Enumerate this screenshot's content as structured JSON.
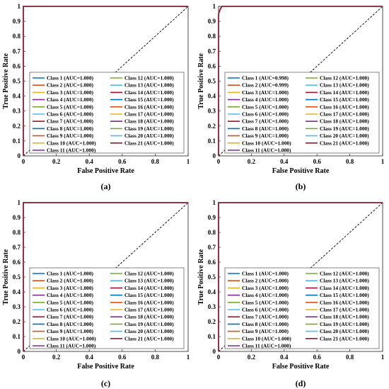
{
  "figure": {
    "panel_labels": [
      "(a)",
      "(b)",
      "(c)",
      "(d)"
    ]
  },
  "class_colors": [
    "#0072BD",
    "#D95319",
    "#EDB120",
    "#7E2F8E",
    "#77AC30",
    "#4DBEEE",
    "#A2142F",
    "#0072BD",
    "#D95319",
    "#EDB120",
    "#7E2F8E",
    "#77AC30",
    "#4DBEEE",
    "#A2142F",
    "#0072BD",
    "#D95319",
    "#EDB120",
    "#7E2F8E",
    "#77AC30",
    "#4DBEEE",
    "#A2142F"
  ],
  "chart_data": [
    {
      "type": "line",
      "panel": "(a)",
      "xlabel": "False Positive Rate",
      "ylabel": "True Positive Rate",
      "xlim": [
        0,
        1
      ],
      "ylim": [
        0,
        1
      ],
      "xticks": [
        "0",
        "0.2",
        "0.4",
        "0.6",
        "0.8",
        "1"
      ],
      "yticks": [
        "0",
        "0.1",
        "0.2",
        "0.3",
        "0.4",
        "0.5",
        "0.6",
        "0.7",
        "0.8",
        "0.9",
        "1"
      ],
      "grid": false,
      "legend_position": "bottom-center",
      "chance_line": {
        "x": [
          0,
          1
        ],
        "y": [
          0,
          1
        ],
        "style": "dashed"
      },
      "legend": [
        "Class 1 (AUC=1.000)",
        "Class 2 (AUC=1.000)",
        "Class 3 (AUC=1.000)",
        "Class 4 (AUC=1.000)",
        "Class 5 (AUC=1.000)",
        "Class 6 (AUC=1.000)",
        "Class 7 (AUC=1.000)",
        "Class 8 (AUC=1.000)",
        "Class 9 (AUC=1.000)",
        "Class 10 (AUC=1.000)",
        "Class 11 (AUC=1.000)",
        "Class 12 (AUC=1.000)",
        "Class 13 (AUC=1.000)",
        "Class 14 (AUC=1.000)",
        "Class 15 (AUC=1.000)",
        "Class 16 (AUC=1.000)",
        "Class 17 (AUC=1.000)",
        "Class 18 (AUC=1.000)",
        "Class 19 (AUC=1.000)",
        "Class 20 (AUC=1.000)",
        "Class 21 (AUC=1.000)"
      ],
      "series_x": [
        0,
        0,
        1
      ],
      "series_y": [
        0,
        1,
        1
      ]
    },
    {
      "type": "line",
      "panel": "(b)",
      "xlabel": "False Positive Rate",
      "ylabel": "True Positive Rate",
      "xlim": [
        0,
        1
      ],
      "ylim": [
        0,
        1
      ],
      "xticks": [
        "0",
        "0.2",
        "0.4",
        "0.6",
        "0.8",
        "1"
      ],
      "yticks": [
        "0",
        "0.1",
        "0.2",
        "0.3",
        "0.4",
        "0.5",
        "0.6",
        "0.7",
        "0.8",
        "0.9",
        "1"
      ],
      "grid": false,
      "legend_position": "bottom-center",
      "chance_line": {
        "x": [
          0,
          1
        ],
        "y": [
          0,
          1
        ],
        "style": "dashed"
      },
      "legend": [
        "Class 1 (AUC=0.998)",
        "Class 2 (AUC=0.999)",
        "Class 3 (AUC=1.000)",
        "Class 4 (AUC=1.000)",
        "Class 5 (AUC=1.000)",
        "Class 6 (AUC=1.000)",
        "Class 7 (AUC=1.000)",
        "Class 8 (AUC=1.000)",
        "Class 9 (AUC=1.000)",
        "Class 10 (AUC=1.000)",
        "Class 11 (AUC=1.000)",
        "Class 12 (AUC=1.000)",
        "Class 13 (AUC=1.000)",
        "Class 14 (AUC=1.000)",
        "Class 15 (AUC=1.000)",
        "Class 16 (AUC=1.000)",
        "Class 17 (AUC=1.000)",
        "Class 18 (AUC=1.000)",
        "Class 19 (AUC=1.000)",
        "Class 20 (AUC=1.000)",
        "Class 21 (AUC=1.000)"
      ],
      "series_x": [
        0,
        0,
        0.01,
        0.02,
        1
      ],
      "series_y": [
        0,
        0.95,
        0.98,
        1,
        1
      ]
    },
    {
      "type": "line",
      "panel": "(c)",
      "xlabel": "False Positive Rate",
      "ylabel": "True Positive Rate",
      "xlim": [
        0,
        1
      ],
      "ylim": [
        0,
        1
      ],
      "xticks": [
        "0",
        "0.2",
        "0.4",
        "0.6",
        "0.8",
        "1"
      ],
      "yticks": [
        "0",
        "0.1",
        "0.2",
        "0.3",
        "0.4",
        "0.5",
        "0.6",
        "0.7",
        "0.8",
        "0.9",
        "1"
      ],
      "grid": false,
      "legend_position": "bottom-center",
      "chance_line": {
        "x": [
          0,
          1
        ],
        "y": [
          0,
          1
        ],
        "style": "dashed"
      },
      "legend": [
        "Class 1 (AUC=1.000)",
        "Class 2 (AUC=1.000)",
        "Class 3 (AUC=1.000)",
        "Class 4 (AUC=1.000)",
        "Class 5 (AUC=1.000)",
        "Class 6 (AUC=1.000)",
        "Class 7 (AUC=1.000)",
        "Class 8 (AUC=1.000)",
        "Class 9 (AUC=1.000)",
        "Class 10 (AUC=1.000)",
        "Class 11 (AUC=1.000)",
        "Class 12 (AUC=1.000)",
        "Class 13 (AUC=1.000)",
        "Class 14 (AUC=1.000)",
        "Class 15 (AUC=1.000)",
        "Class 16 (AUC=1.000)",
        "Class 17 (AUC=1.000)",
        "Class 18 (AUC=1.000)",
        "Class 19 (AUC=1.000)",
        "Class 20 (AUC=1.000)",
        "Class 21 (AUC=1.000)"
      ],
      "series_x": [
        0,
        0,
        1
      ],
      "series_y": [
        0,
        1,
        1
      ]
    },
    {
      "type": "line",
      "panel": "(d)",
      "xlabel": "False Positive Rate",
      "ylabel": "True Positive Rate",
      "xlim": [
        0,
        1
      ],
      "ylim": [
        0,
        1
      ],
      "xticks": [
        "0",
        "0.2",
        "0.4",
        "0.6",
        "0.8",
        "1"
      ],
      "yticks": [
        "0",
        "0.1",
        "0.2",
        "0.3",
        "0.4",
        "0.5",
        "0.6",
        "0.7",
        "0.8",
        "0.9",
        "1"
      ],
      "grid": false,
      "legend_position": "bottom-center",
      "chance_line": {
        "x": [
          0,
          1
        ],
        "y": [
          0,
          1
        ],
        "style": "dashed"
      },
      "legend": [
        "Class 1 (AUC=1.000)",
        "Class 2 (AUC=1.000)",
        "Class 3 (AUC=1.000)",
        "Class 4 (AUC=1.000)",
        "Class 5 (AUC=1.000)",
        "Class 6 (AUC=1.000)",
        "Class 7 (AUC=1.000)",
        "Class 8 (AUC=1.000)",
        "Class 9 (AUC=1.000)",
        "Class 10 (AUC=1.000)",
        "Class 11 (AUC=1.000)",
        "Class 12 (AUC=1.000)",
        "Class 13 (AUC=1.000)",
        "Class 14 (AUC=1.000)",
        "Class 15 (AUC=1.000)",
        "Class 16 (AUC=1.000)",
        "Class 17 (AUC=1.000)",
        "Class 18 (AUC=1.000)",
        "Class 19 (AUC=1.000)",
        "Class 20 (AUC=1.000)",
        "Class 21 (AUC=1.000)"
      ],
      "series_x": [
        0,
        0,
        1
      ],
      "series_y": [
        0,
        1,
        1
      ]
    }
  ]
}
